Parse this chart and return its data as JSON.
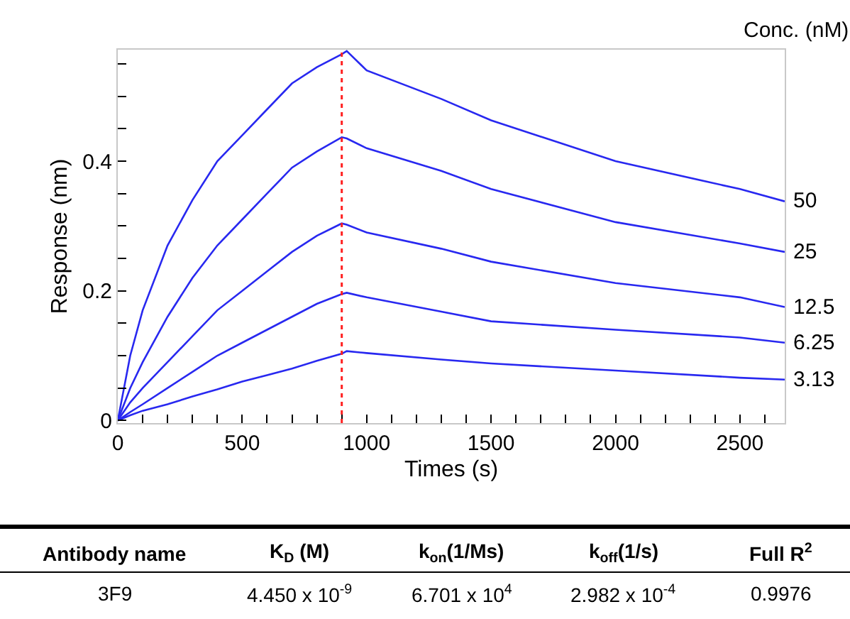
{
  "chart_data": {
    "type": "line",
    "xlabel": "Times (s)",
    "ylabel": "Response (nm)",
    "legend_title": "Conc. (nM)",
    "x": [
      0,
      50,
      100,
      200,
      300,
      400,
      500,
      600,
      700,
      800,
      900,
      920,
      1000,
      1300,
      1500,
      2000,
      2500,
      2680
    ],
    "series": [
      {
        "name": "50",
        "color": "#2828f0",
        "values": [
          0,
          0.1,
          0.17,
          0.27,
          0.34,
          0.4,
          0.44,
          0.48,
          0.52,
          0.545,
          0.565,
          0.57,
          0.54,
          0.496,
          0.463,
          0.4,
          0.357,
          0.338
        ]
      },
      {
        "name": "25",
        "color": "#2828f0",
        "values": [
          0,
          0.05,
          0.09,
          0.16,
          0.22,
          0.27,
          0.31,
          0.35,
          0.39,
          0.415,
          0.437,
          0.435,
          0.42,
          0.385,
          0.357,
          0.306,
          0.273,
          0.26
        ]
      },
      {
        "name": "12.5",
        "color": "#2828f0",
        "values": [
          0,
          0.028,
          0.05,
          0.09,
          0.13,
          0.17,
          0.2,
          0.23,
          0.26,
          0.285,
          0.304,
          0.302,
          0.29,
          0.265,
          0.245,
          0.212,
          0.19,
          0.175
        ]
      },
      {
        "name": "6.25",
        "color": "#2828f0",
        "values": [
          0,
          0.013,
          0.025,
          0.05,
          0.075,
          0.1,
          0.12,
          0.14,
          0.16,
          0.18,
          0.195,
          0.197,
          0.19,
          0.168,
          0.153,
          0.14,
          0.128,
          0.12
        ]
      },
      {
        "name": "3.13",
        "color": "#2828f0",
        "values": [
          0,
          0.008,
          0.015,
          0.025,
          0.037,
          0.048,
          0.06,
          0.07,
          0.08,
          0.092,
          0.103,
          0.107,
          0.104,
          0.094,
          0.088,
          0.077,
          0.066,
          0.063
        ]
      }
    ],
    "xlim": [
      0,
      2680
    ],
    "xticks": [
      0,
      {
        "value": 100,
        "label": null
      },
      {
        "value": 200,
        "label": null
      },
      {
        "value": 300,
        "label": null
      },
      {
        "value": 400,
        "label": null
      },
      500,
      {
        "value": 600,
        "label": null
      },
      {
        "value": 700,
        "label": null
      },
      {
        "value": 800,
        "label": null
      },
      {
        "value": 900,
        "label": null
      },
      1000,
      {
        "value": 1100,
        "label": null
      },
      {
        "value": 1200,
        "label": null
      },
      {
        "value": 1300,
        "label": null
      },
      {
        "value": 1400,
        "label": null
      },
      1500,
      {
        "value": 1600,
        "label": null
      },
      {
        "value": 1700,
        "label": null
      },
      {
        "value": 1800,
        "label": null
      },
      {
        "value": 1900,
        "label": null
      },
      2000,
      {
        "value": 2100,
        "label": null
      },
      {
        "value": 2200,
        "label": null
      },
      {
        "value": 2300,
        "label": null
      },
      {
        "value": 2400,
        "label": null
      },
      2500,
      {
        "value": 2600,
        "label": null
      }
    ],
    "ylim": [
      -0.004,
      0.572
    ],
    "yticks": [
      {
        "value": 0,
        "label": "0"
      },
      {
        "value": 0.05,
        "label": null
      },
      {
        "value": 0.1,
        "label": null
      },
      {
        "value": 0.15,
        "label": null
      },
      0.2,
      {
        "value": 0.25,
        "label": null
      },
      {
        "value": 0.3,
        "label": null
      },
      {
        "value": 0.35,
        "label": null
      },
      0.4,
      {
        "value": 0.45,
        "label": null
      },
      {
        "value": 0.5,
        "label": null
      },
      {
        "value": 0.55,
        "label": null
      }
    ],
    "ref_lines": [
      {
        "axis": "x",
        "value": 900,
        "color": "#ff2020",
        "line_style": "dotted"
      }
    ],
    "annotations": [
      "Antibody name",
      "K$_{D}$ (M)",
      "k$_{on}$(1/Ms)",
      "k$_{off}$(1/s)",
      "Full R$^{2}$",
      "3F9",
      "4.450 x 10$^{-9}$",
      "6.701 x 10$^{4}$",
      "2.982 x 10$^{-4}$",
      "0.9976"
    ],
    "legend": false,
    "marker": "none",
    "line_style": "solid"
  }
}
